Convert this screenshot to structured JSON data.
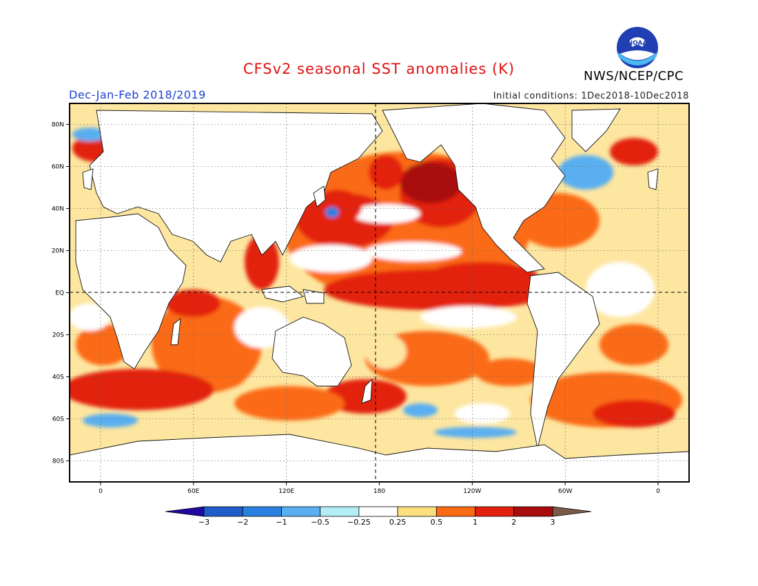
{
  "title": "CFSv2 seasonal SST anomalies (K)",
  "period": "Dec-Jan-Feb 2018/2019",
  "initial_conditions": "Initial conditions: 1Dec2018-10Dec2018",
  "agency": "NWS/NCEP/CPC",
  "logo_text": "NOAA",
  "map": {
    "lon_range": [
      -20,
      380
    ],
    "lat_range": [
      -90,
      90
    ],
    "lat_ticks": [
      {
        "lat": 80,
        "label": "80N"
      },
      {
        "lat": 60,
        "label": "60N"
      },
      {
        "lat": 40,
        "label": "40N"
      },
      {
        "lat": 20,
        "label": "20N"
      },
      {
        "lat": 0,
        "label": "EQ"
      },
      {
        "lat": -20,
        "label": "20S"
      },
      {
        "lat": -40,
        "label": "40S"
      },
      {
        "lat": -60,
        "label": "60S"
      },
      {
        "lat": -80,
        "label": "80S"
      }
    ],
    "lon_ticks": [
      {
        "lon": 0,
        "label": "0"
      },
      {
        "lon": 60,
        "label": "60E"
      },
      {
        "lon": 120,
        "label": "120E"
      },
      {
        "lon": 180,
        "label": "180"
      },
      {
        "lon": 240,
        "label": "120W"
      },
      {
        "lon": 300,
        "label": "60W"
      },
      {
        "lon": 360,
        "label": "0"
      }
    ],
    "grid": true
  },
  "colorbar": {
    "labels": [
      "-3",
      "-2",
      "-1",
      "-0.5",
      "-0.25",
      "0.25",
      "0.5",
      "1",
      "2",
      "3"
    ],
    "colors": [
      "#1e0aa0",
      "#1f5ec9",
      "#2a80e0",
      "#5aaff0",
      "#b4eef5",
      "#ffffff",
      "#fbe07f",
      "#fb6a14",
      "#e3210e",
      "#a80c0c",
      "#7a5a48"
    ]
  },
  "features": [
    {
      "name": "equatorial-pacific",
      "level": 2
    },
    {
      "name": "north-pacific-blob",
      "level": 2
    },
    {
      "name": "gulf-alaska",
      "level": 2
    },
    {
      "name": "kuroshio",
      "level": 1
    },
    {
      "name": "indian-ocean",
      "level": 1
    },
    {
      "name": "southern-ocean",
      "level": 1
    },
    {
      "name": "north-atlantic-cold",
      "level": -1
    }
  ]
}
